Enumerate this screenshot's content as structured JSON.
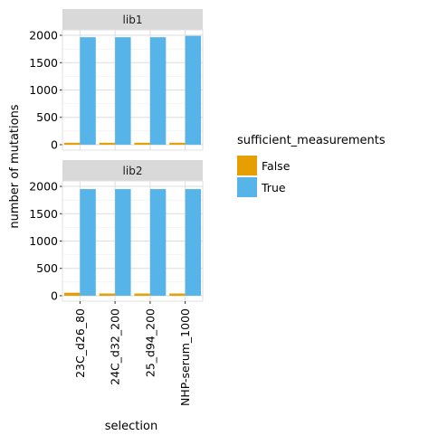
{
  "chart_data": {
    "type": "bar",
    "title": "",
    "xlabel": "selection",
    "ylabel": "number of mutations",
    "categories": [
      "23C_d26_80",
      "24C_d32_200",
      "25_d94_200",
      "NHP-serum_1000"
    ],
    "ylim": [
      -100,
      2100
    ],
    "yticks": [
      0,
      500,
      1000,
      1500,
      2000
    ],
    "grid": true,
    "legend": {
      "title": "sufficient_measurements",
      "placement": "right",
      "entries": [
        {
          "label": "False",
          "color": "#E69F00"
        },
        {
          "label": "True",
          "color": "#56B4E9"
        }
      ]
    },
    "facets": [
      {
        "name": "lib1",
        "series": [
          {
            "name": "False",
            "color": "#E69F00",
            "values": [
              35,
              35,
              35,
              35
            ]
          },
          {
            "name": "True",
            "color": "#56B4E9",
            "values": [
              1965,
              1965,
              1965,
              1990
            ]
          }
        ]
      },
      {
        "name": "lib2",
        "series": [
          {
            "name": "False",
            "color": "#E69F00",
            "values": [
              55,
              40,
              40,
              40
            ]
          },
          {
            "name": "True",
            "color": "#56B4E9",
            "values": [
              1950,
              1950,
              1950,
              1950
            ]
          }
        ]
      }
    ]
  },
  "colors": {
    "strip_background": "#D9D9D9",
    "panel_border": "#E0E0E0",
    "grid": "#DEDEDE",
    "text": "#000000"
  }
}
